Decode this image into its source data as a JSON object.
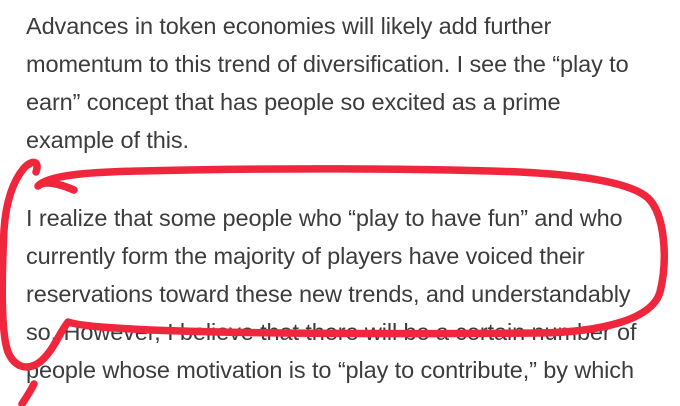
{
  "paragraphs": [
    {
      "lines": [
        "Advances in token economies will likely add further",
        "momentum to this trend of diversification. I see the “play to",
        "earn” concept that has people so excited as a prime",
        "example of this."
      ]
    },
    {
      "lines": [
        "I realize that some people who “play to have fun” and who",
        "currently form the majority of players have voiced their",
        "reservations toward these new trends, and understandably",
        "so. However, I believe that there will be a certain number of",
        "people whose motivation is to “play to contribute,” by which"
      ]
    }
  ],
  "annotation": {
    "color": "#f0263c"
  },
  "colors": {
    "text": "#3c3c3c",
    "background": "#ffffff"
  }
}
